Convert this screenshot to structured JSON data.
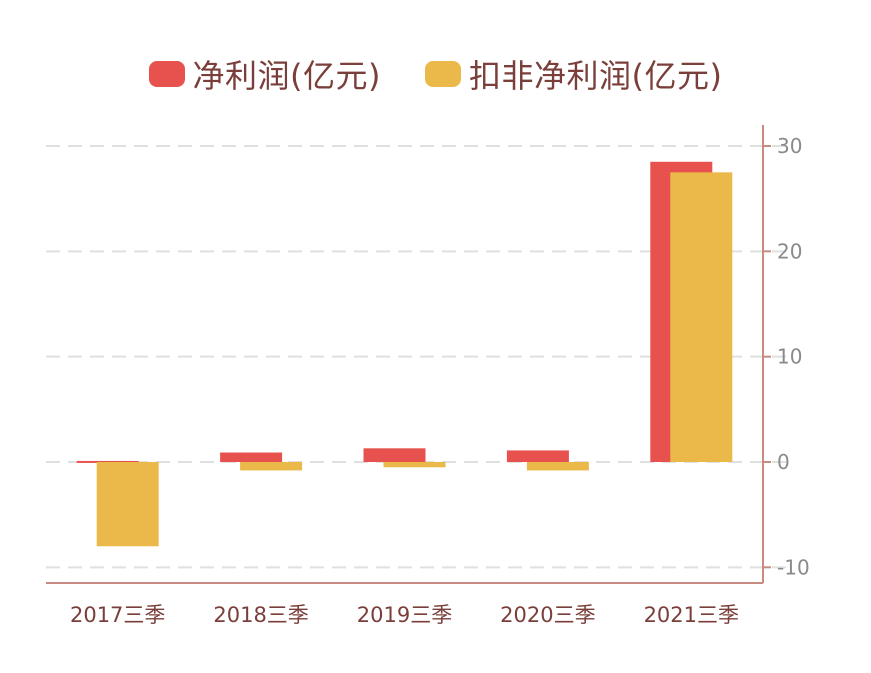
{
  "colors": {
    "net_profit": "#e8524e",
    "deducted_profit": "#ebb94a",
    "axis": "#c98a82",
    "grid": "#e0e0e0"
  },
  "legend": [
    {
      "label": "净利润(亿元)",
      "color": "#e8524e"
    },
    {
      "label": "扣非净利润(亿元)",
      "color": "#ebb94a"
    }
  ],
  "chart_data": {
    "type": "bar",
    "categories": [
      "2017三季",
      "2018三季",
      "2019三季",
      "2020三季",
      "2021三季"
    ],
    "series": [
      {
        "name": "净利润(亿元)",
        "values": [
          0.1,
          0.9,
          1.3,
          1.1,
          28.5
        ]
      },
      {
        "name": "扣非净利润(亿元)",
        "values": [
          -8.0,
          -0.8,
          -0.5,
          -0.8,
          27.5
        ]
      }
    ],
    "ylim": [
      -11.5,
      32
    ],
    "yticks": [
      30,
      20,
      10,
      0,
      -10
    ],
    "ytick_labels": [
      "30",
      "20",
      "10",
      "0",
      "-10"
    ],
    "y_axis_position": "right",
    "grid": true,
    "legend_position": "top-center"
  }
}
